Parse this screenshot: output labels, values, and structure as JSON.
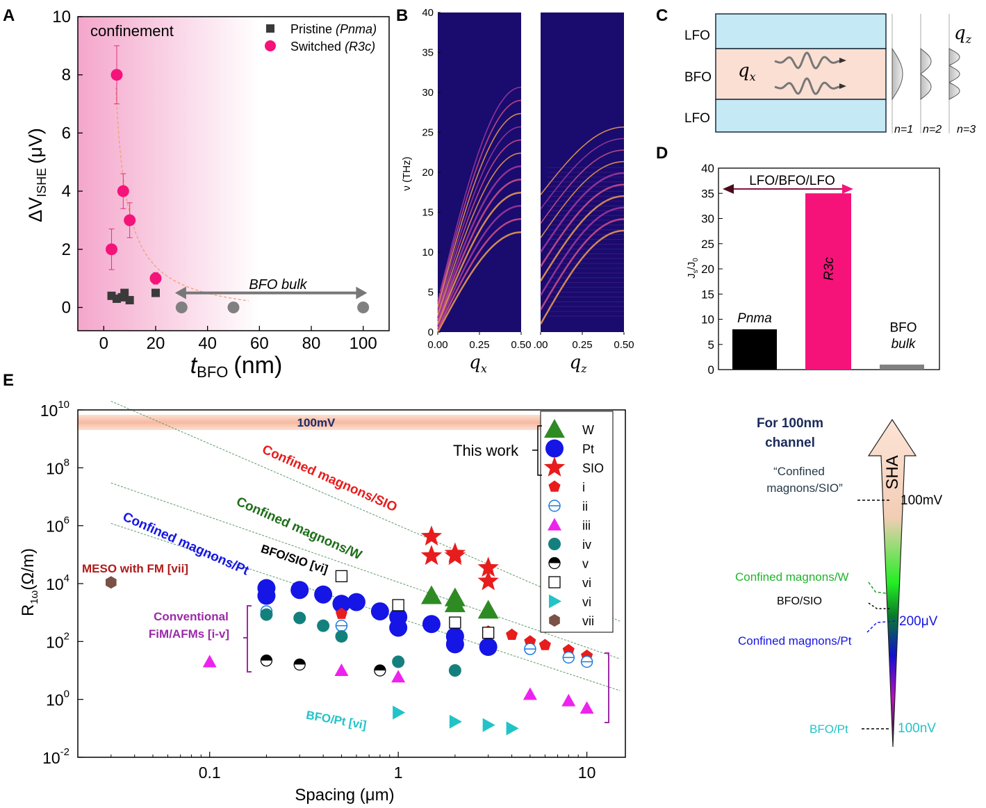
{
  "panel_labels": {
    "a": "A",
    "b": "B",
    "c": "C",
    "d": "D",
    "e": "E"
  },
  "panelA": {
    "ylabel": "ΔV",
    "ylabel_sub": "ISHE",
    "ylabel_unit": "(μV)",
    "xlabel": "t",
    "xlabel_sub": "BFO",
    "xlabel_unit": "(nm)",
    "region_label": "confinement",
    "bulk_label": "BFO bulk",
    "legend_pristine": "Pristine",
    "legend_pristine_sym": "(Pnma)",
    "legend_switched": "Switched",
    "legend_switched_sym": "(R3c)"
  },
  "panelB": {
    "ylabel": "ν (THz)",
    "xlabel_left": "q",
    "xlabel_left_sub": "x",
    "xlabel_right": "q",
    "xlabel_right_sub": "z"
  },
  "panelC": {
    "layer_top": "LFO",
    "layer_mid": "BFO",
    "layer_bot": "LFO",
    "wave_label": "q",
    "wave_label_sub": "x",
    "qz_label": "q",
    "qz_label_sub": "z",
    "modes": [
      "n=1",
      "n=2",
      "n=3"
    ]
  },
  "panelD": {
    "ylabel": "J",
    "ylabel_s": "s",
    "ylabel_mid": "/J",
    "ylabel_0": "0",
    "arrow_label": "LFO/BFO/LFO",
    "bar_pnma": "Pnma",
    "bar_r3c": "R3c",
    "bar_bulk_1": "BFO",
    "bar_bulk_2": "bulk"
  },
  "panelE": {
    "ylabel": "R",
    "ylabel_sub": "1ω",
    "ylabel_unit": "(Ω/m)",
    "xlabel": "Spacing (μm)",
    "band_label": "100mV",
    "this_work": "This work",
    "legend": [
      "W",
      "Pt",
      "SIO",
      "i",
      "ii",
      "iii",
      "iv",
      "v",
      "vi",
      "vi",
      "vii"
    ],
    "line_labels": {
      "sio": "Confined magnons/SIO",
      "w": "Confined magnons/W",
      "pt": "Confined magnons/Pt",
      "bfosio": "BFO/SIO [vi]",
      "meso": "MESO with FM [vii]",
      "conv1": "Conventional",
      "conv2": "FiM/AFMs [i-v]",
      "bfopt": "BFO/Pt [vi]"
    }
  },
  "sha": {
    "title1": "For 100nm",
    "title2": "channel",
    "arrow_label": "SHA",
    "quote1": "“Confined",
    "quote2": "magnons/SIO”",
    "v100mV": "100mV",
    "cm_w": "Confined magnons/W",
    "bfosio": "BFO/SIO",
    "v200uV": "200μV",
    "cm_pt": "Confined magnons/Pt",
    "bfopt": "BFO/Pt",
    "v100nV": "100nV"
  },
  "colors": {
    "pink": "#f5137a",
    "gray": "#808080",
    "dark": "#3a3a3a",
    "red": "#e81c1c",
    "green": "#2e8b23",
    "blue": "#1515e6",
    "magenta": "#ee22ee",
    "teal": "#14807e",
    "cyan": "#22c3c8",
    "brown": "#7b5146",
    "purple": "#9b2aa8",
    "lightblue": "#c5e9f5",
    "peach": "#fbdfd2"
  },
  "chart_data": [
    {
      "id": "A",
      "type": "scatter",
      "xlabel": "tBFO (nm)",
      "ylabel": "ΔVISHE (μV)",
      "xlim": [
        -10,
        110
      ],
      "ylim": [
        -0.8,
        10
      ],
      "xticks": [
        0,
        20,
        40,
        60,
        80,
        100
      ],
      "yticks": [
        0,
        2,
        4,
        6,
        8,
        10
      ],
      "series": [
        {
          "name": "Pristine (Pnma)",
          "marker": "square",
          "x": [
            3,
            5,
            7,
            8,
            10,
            20
          ],
          "y": [
            0.4,
            0.3,
            0.35,
            0.5,
            0.25,
            0.5
          ]
        },
        {
          "name": "Switched (R3c)",
          "marker": "circle",
          "x": [
            3,
            5,
            7.5,
            10,
            20
          ],
          "y": [
            2.0,
            8.0,
            4.0,
            3.0,
            1.0
          ],
          "err": [
            0.7,
            1.0,
            0.6,
            0.6,
            0.2
          ]
        },
        {
          "name": "BFO bulk",
          "marker": "circle",
          "x": [
            30,
            50,
            100
          ],
          "y": [
            0,
            0,
            0
          ]
        }
      ]
    },
    {
      "id": "B",
      "type": "heatmap",
      "ylabel": "ν (THz)",
      "ylim": [
        0,
        40
      ],
      "yticks": [
        0,
        5,
        10,
        15,
        20,
        25,
        30,
        35,
        40
      ],
      "panels": [
        {
          "xlabel": "qx",
          "xlim": [
            0,
            0.5
          ],
          "xticks": [
            "0.00",
            "0.25",
            "0.50"
          ]
        },
        {
          "xlabel": "qz",
          "xlim": [
            0,
            0.5
          ],
          "xticks": [
            ".00",
            "0.25",
            "0.50"
          ]
        }
      ]
    },
    {
      "id": "D",
      "type": "bar",
      "ylabel": "Js/J0",
      "ylim": [
        0,
        40
      ],
      "yticks": [
        0,
        5,
        10,
        15,
        20,
        25,
        30,
        35,
        40
      ],
      "categories": [
        "Pnma",
        "R3c",
        "BFO bulk"
      ],
      "values": [
        8,
        35,
        1
      ]
    },
    {
      "id": "E",
      "type": "scatter",
      "xlabel": "Spacing (μm)",
      "ylabel": "R1ω(Ω/m)",
      "x_scale": "log",
      "y_scale": "log",
      "xlim": [
        0.02,
        16
      ],
      "ylim": [
        0.01,
        10000000000
      ],
      "xticks": [
        "0.1",
        "1",
        "10"
      ],
      "yticks": [
        "10^-2",
        "10^0",
        "10^2",
        "10^4",
        "10^6",
        "10^8",
        "10^10"
      ],
      "series": [
        {
          "name": "W",
          "x": [
            1.5,
            2,
            2,
            3
          ],
          "y": [
            3800,
            3200,
            2000,
            1200
          ]
        },
        {
          "name": "Pt",
          "x": [
            0.2,
            0.2,
            0.3,
            0.4,
            0.5,
            0.6,
            0.8,
            1,
            1,
            1.5,
            2,
            2,
            3
          ],
          "y": [
            7000,
            3800,
            6000,
            4200,
            2000,
            2300,
            1100,
            700,
            300,
            400,
            150,
            80,
            65
          ]
        },
        {
          "name": "SIO",
          "x": [
            1.5,
            1.5,
            2,
            2,
            3,
            3
          ],
          "y": [
            420000,
            90000,
            110000,
            90000,
            35000,
            12000
          ]
        },
        {
          "name": "i",
          "x": [
            0.5,
            3,
            4,
            5,
            6,
            8,
            10
          ],
          "y": [
            900,
            220,
            170,
            100,
            75,
            50,
            32
          ]
        },
        {
          "name": "ii",
          "x": [
            0.2,
            0.5,
            5,
            8,
            10
          ],
          "y": [
            1100,
            350,
            55,
            28,
            20
          ]
        },
        {
          "name": "iii",
          "x": [
            0.1,
            0.5,
            1,
            5,
            8,
            10
          ],
          "y": [
            20,
            10,
            6,
            1.5,
            0.9,
            0.5
          ]
        },
        {
          "name": "iv",
          "x": [
            0.2,
            0.3,
            0.4,
            0.5,
            1,
            2
          ],
          "y": [
            850,
            650,
            350,
            150,
            20,
            10
          ]
        },
        {
          "name": "v",
          "x": [
            0.2,
            0.3,
            0.8
          ],
          "y": [
            22,
            16,
            10
          ]
        },
        {
          "name": "vi",
          "marker": "open-square",
          "x": [
            0.5,
            1,
            2,
            3
          ],
          "y": [
            18000,
            1800,
            450,
            200
          ]
        },
        {
          "name": "vi",
          "marker": "triangle-right",
          "x": [
            1,
            2,
            3,
            4
          ],
          "y": [
            0.35,
            0.17,
            0.13,
            0.1
          ]
        },
        {
          "name": "vii",
          "x": [
            0.03
          ],
          "y": [
            11000
          ]
        }
      ]
    }
  ]
}
